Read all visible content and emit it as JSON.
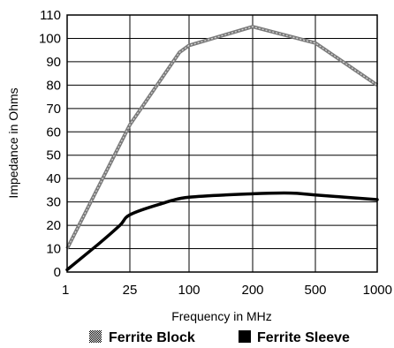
{
  "chart_data": {
    "type": "line",
    "title": "",
    "xlabel": "Frequency in MHz",
    "ylabel": "Impedance in Ohms",
    "x_ticks": [
      "1",
      "25",
      "100",
      "200",
      "500",
      "1000"
    ],
    "y_ticks": [
      "0",
      "10",
      "20",
      "30",
      "40",
      "50",
      "60",
      "70",
      "80",
      "90",
      "100",
      "110"
    ],
    "ylim": [
      0,
      110
    ],
    "grid": true,
    "legend_placement": "bottom",
    "series": [
      {
        "name": "Ferrite Block",
        "color": "#8c8c8c",
        "legend_swatch": "checkered",
        "x": [
          "1",
          "25",
          "80",
          "100",
          "200",
          "500",
          "1000"
        ],
        "values": [
          10,
          63,
          94,
          97,
          105,
          98,
          80
        ]
      },
      {
        "name": "Ferrite Sleeve",
        "color": "#000000",
        "legend_swatch": "solid",
        "x": [
          "1",
          "5",
          "15",
          "25",
          "50",
          "100",
          "200",
          "350",
          "500",
          "1000"
        ],
        "values": [
          1,
          12,
          20,
          24.5,
          29,
          32,
          33.5,
          33.8,
          33,
          31
        ]
      }
    ]
  }
}
